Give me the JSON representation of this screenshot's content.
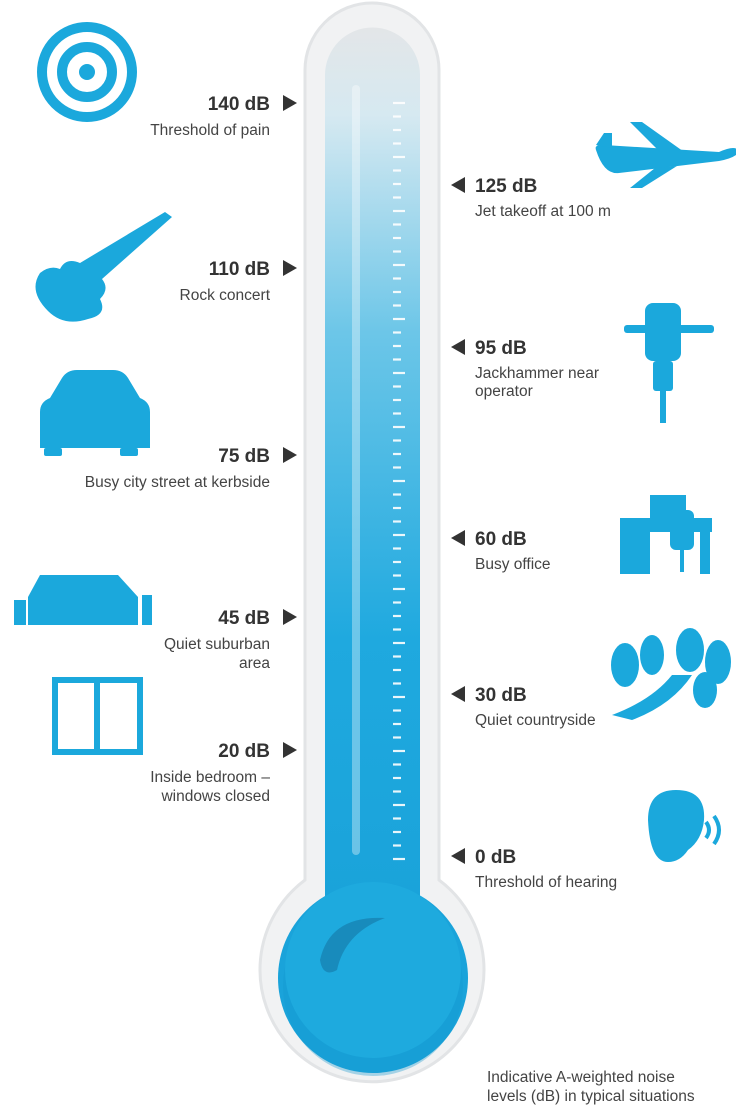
{
  "left_labels": [
    {
      "level": "140 dB",
      "description": [
        "Threshold of pain"
      ]
    },
    {
      "level": "110 dB",
      "description": [
        "Rock concert"
      ]
    },
    {
      "level": "75 dB",
      "description": [
        "Busy city street at kerbside"
      ]
    },
    {
      "level": "45 dB",
      "description": [
        "Quiet suburban",
        "area"
      ]
    },
    {
      "level": "20 dB",
      "description": [
        "Inside bedroom –",
        "windows closed"
      ]
    }
  ],
  "right_labels": [
    {
      "level": "125 dB",
      "description": [
        "Jet takeoff at 100 m"
      ]
    },
    {
      "level": "95 dB",
      "description": [
        "Jackhammer near",
        "operator"
      ]
    },
    {
      "level": "60 dB",
      "description": [
        "Busy office"
      ]
    },
    {
      "level": "30 dB",
      "description": [
        "Quiet countryside"
      ]
    },
    {
      "level": "0 dB",
      "description": [
        "Threshold of hearing"
      ]
    }
  ],
  "caption": [
    "Indicative A-weighted noise",
    "levels (dB) in typical situations"
  ]
}
